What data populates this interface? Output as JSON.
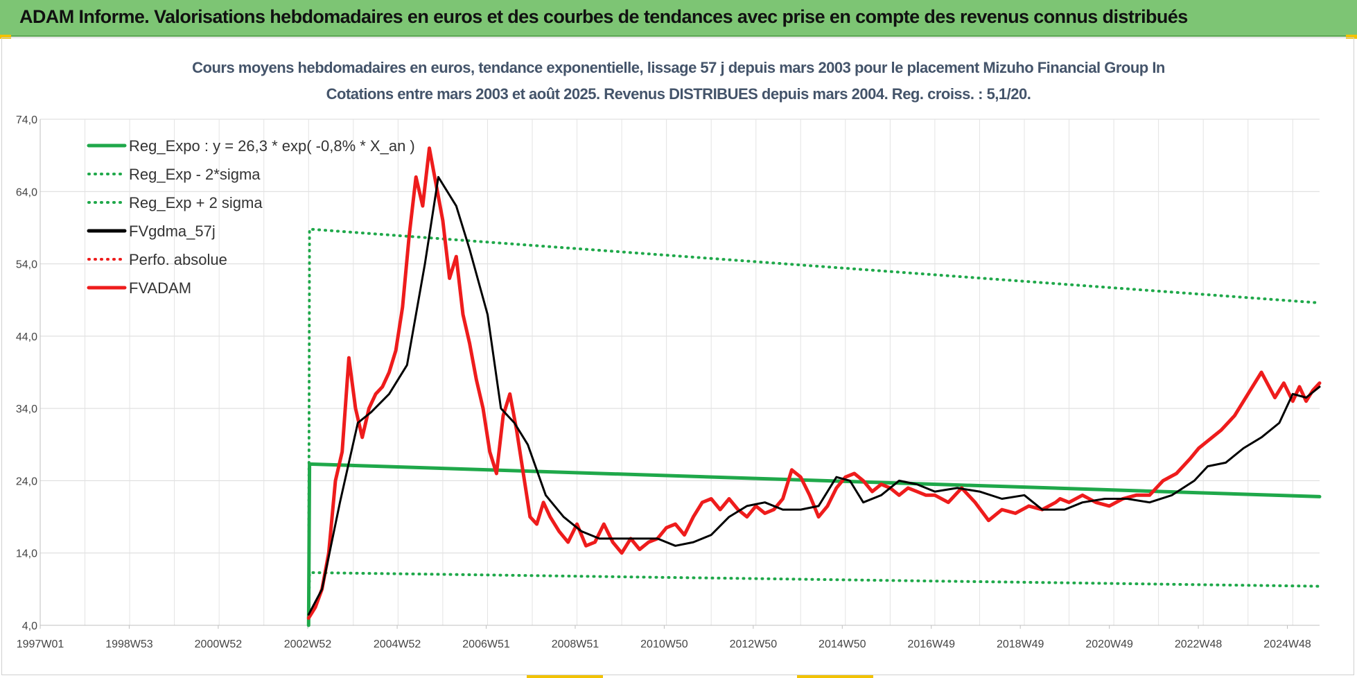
{
  "banner": {
    "title": "ADAM Informe. Valorisations hebdomadaires en euros et des courbes de tendances avec prise en compte des revenus connus distribués"
  },
  "colors": {
    "banner_bg": "#7dc574",
    "reg_green": "#1fa84a",
    "price_red": "#ee1c1c",
    "smooth_black": "#000000",
    "title_text": "#44546a"
  },
  "chart_data": {
    "type": "line",
    "title": "Cours moyens hebdomadaires en euros, tendance exponentielle, lissage 57 j depuis mars 2003 pour le placement Mizuho Financial Group In",
    "subtitle": "Cotations entre mars 2003 et août 2025.  Revenus DISTRIBUES depuis mars 2004. Reg. croiss. : 5,1/20.",
    "xlabel": "",
    "ylabel": "",
    "x_unit": "year",
    "xlim": [
      1997.0,
      2025.6
    ],
    "ylim": [
      4.0,
      74.0
    ],
    "y_ticks": [
      "4,0",
      "14,0",
      "24,0",
      "34,0",
      "44,0",
      "54,0",
      "64,0",
      "74,0"
    ],
    "x_ticks": [
      {
        "label": "1997W01",
        "x": 1997.0
      },
      {
        "label": "1998W53",
        "x": 1998.99
      },
      {
        "label": "2000W52",
        "x": 2000.98
      },
      {
        "label": "2002W52",
        "x": 2002.98
      },
      {
        "label": "2004W52",
        "x": 2004.98
      },
      {
        "label": "2006W51",
        "x": 2006.97
      },
      {
        "label": "2008W51",
        "x": 2008.96
      },
      {
        "label": "2010W50",
        "x": 2010.95
      },
      {
        "label": "2012W50",
        "x": 2012.94
      },
      {
        "label": "2014W50",
        "x": 2014.93
      },
      {
        "label": "2016W49",
        "x": 2016.92
      },
      {
        "label": "2018W49",
        "x": 2018.91
      },
      {
        "label": "2020W49",
        "x": 2020.9
      },
      {
        "label": "2022W48",
        "x": 2022.89
      },
      {
        "label": "2024W48",
        "x": 2024.88
      }
    ],
    "grid": true,
    "legend_position": "top-left",
    "series": [
      {
        "name": "Reg_Expo : y = 26,3 * exp( -0,8% *  X_an )",
        "style": "solid-thick",
        "color": "#1fa84a",
        "x": [
          2003.0,
          2003.02,
          2025.6
        ],
        "y": [
          4.0,
          26.3,
          21.8
        ]
      },
      {
        "name": "Reg_Exp - 2*sigma",
        "style": "dotted",
        "color": "#1fa84a",
        "x": [
          2003.0,
          2003.02,
          2025.6
        ],
        "y": [
          4.0,
          11.3,
          9.4
        ]
      },
      {
        "name": "Reg_Exp + 2 sigma",
        "style": "dotted",
        "color": "#1fa84a",
        "x": [
          2003.0,
          2003.02,
          2025.6
        ],
        "y": [
          4.0,
          58.8,
          48.6
        ]
      },
      {
        "name": "FVgdma_57j",
        "style": "solid-thin",
        "color": "#000000",
        "x": [
          2003.0,
          2003.3,
          2003.7,
          2004.1,
          2004.4,
          2004.8,
          2005.2,
          2005.6,
          2005.9,
          2006.3,
          2006.6,
          2007.0,
          2007.3,
          2007.6,
          2007.9,
          2008.3,
          2008.7,
          2009.1,
          2009.5,
          2009.9,
          2010.3,
          2010.8,
          2011.2,
          2011.6,
          2012.0,
          2012.4,
          2012.8,
          2013.2,
          2013.6,
          2014.0,
          2014.4,
          2014.8,
          2015.1,
          2015.4,
          2015.8,
          2016.2,
          2016.6,
          2017.0,
          2017.5,
          2018.0,
          2018.5,
          2019.0,
          2019.4,
          2019.9,
          2020.3,
          2020.8,
          2021.3,
          2021.8,
          2022.3,
          2022.8,
          2023.1,
          2023.5,
          2023.9,
          2024.3,
          2024.7,
          2025.0,
          2025.3,
          2025.6
        ],
        "y": [
          5.5,
          9.0,
          21.0,
          32.0,
          33.5,
          36.0,
          40.0,
          54.0,
          66.0,
          62.0,
          56.0,
          47.0,
          34.0,
          32.0,
          29.0,
          22.0,
          19.0,
          17.0,
          16.0,
          16.0,
          16.0,
          16.0,
          15.0,
          15.5,
          16.5,
          19.0,
          20.5,
          21.0,
          20.0,
          20.0,
          20.5,
          24.5,
          24.0,
          21.0,
          22.0,
          24.0,
          23.5,
          22.5,
          23.0,
          22.5,
          21.5,
          22.0,
          20.0,
          20.0,
          21.0,
          21.5,
          21.5,
          21.0,
          22.0,
          24.0,
          26.0,
          26.5,
          28.5,
          30.0,
          32.0,
          36.0,
          35.5,
          37.0
        ]
      },
      {
        "name": "Perfo. absolue",
        "style": "dotted",
        "color": "#ee1c1c",
        "x": [],
        "y": []
      },
      {
        "name": "FVADAM",
        "style": "solid-thick",
        "color": "#ee1c1c",
        "x": [
          2003.0,
          2003.15,
          2003.3,
          2003.45,
          2003.6,
          2003.75,
          2003.9,
          2004.05,
          2004.2,
          2004.35,
          2004.5,
          2004.65,
          2004.8,
          2004.95,
          2005.1,
          2005.25,
          2005.4,
          2005.55,
          2005.7,
          2005.85,
          2006.0,
          2006.15,
          2006.3,
          2006.45,
          2006.6,
          2006.75,
          2006.9,
          2007.05,
          2007.2,
          2007.35,
          2007.5,
          2007.65,
          2007.8,
          2007.95,
          2008.1,
          2008.25,
          2008.4,
          2008.6,
          2008.8,
          2009.0,
          2009.2,
          2009.4,
          2009.6,
          2009.8,
          2010.0,
          2010.2,
          2010.4,
          2010.6,
          2010.8,
          2011.0,
          2011.2,
          2011.4,
          2011.6,
          2011.8,
          2012.0,
          2012.2,
          2012.4,
          2012.6,
          2012.8,
          2013.0,
          2013.2,
          2013.4,
          2013.6,
          2013.8,
          2014.0,
          2014.2,
          2014.4,
          2014.6,
          2014.8,
          2015.0,
          2015.2,
          2015.4,
          2015.6,
          2015.8,
          2016.0,
          2016.2,
          2016.4,
          2016.6,
          2016.8,
          2017.0,
          2017.3,
          2017.6,
          2017.9,
          2018.2,
          2018.5,
          2018.8,
          2019.1,
          2019.4,
          2019.7,
          2019.8,
          2020.0,
          2020.3,
          2020.6,
          2020.9,
          2021.2,
          2021.5,
          2021.8,
          2022.1,
          2022.4,
          2022.7,
          2022.9,
          2023.1,
          2023.4,
          2023.7,
          2024.0,
          2024.3,
          2024.6,
          2024.8,
          2025.0,
          2025.15,
          2025.3,
          2025.45,
          2025.6
        ],
        "y": [
          5.0,
          6.5,
          9.0,
          14.0,
          24.0,
          28.0,
          41.0,
          34.0,
          30.0,
          34.0,
          36.0,
          37.0,
          39.0,
          42.0,
          48.0,
          58.0,
          66.0,
          62.0,
          70.0,
          65.0,
          60.0,
          52.0,
          55.0,
          47.0,
          43.0,
          38.0,
          34.0,
          28.0,
          25.0,
          33.0,
          36.0,
          31.0,
          25.0,
          19.0,
          18.0,
          21.0,
          19.0,
          17.0,
          15.5,
          18.0,
          15.0,
          15.5,
          18.0,
          15.5,
          14.0,
          16.0,
          14.5,
          15.5,
          16.0,
          17.5,
          18.0,
          16.5,
          19.0,
          21.0,
          21.5,
          20.0,
          21.5,
          20.0,
          19.0,
          20.5,
          19.5,
          20.0,
          21.5,
          25.5,
          24.5,
          22.0,
          19.0,
          20.5,
          23.0,
          24.5,
          25.0,
          24.0,
          22.5,
          23.5,
          23.0,
          22.0,
          23.0,
          22.5,
          22.0,
          22.0,
          21.0,
          23.0,
          21.0,
          18.5,
          20.0,
          19.5,
          20.5,
          20.0,
          21.0,
          21.5,
          21.0,
          22.0,
          21.0,
          20.5,
          21.5,
          22.0,
          22.0,
          24.0,
          25.0,
          27.0,
          28.5,
          29.5,
          31.0,
          33.0,
          36.0,
          39.0,
          35.5,
          37.5,
          35.0,
          37.0,
          35.0,
          36.5,
          37.5
        ]
      }
    ]
  }
}
